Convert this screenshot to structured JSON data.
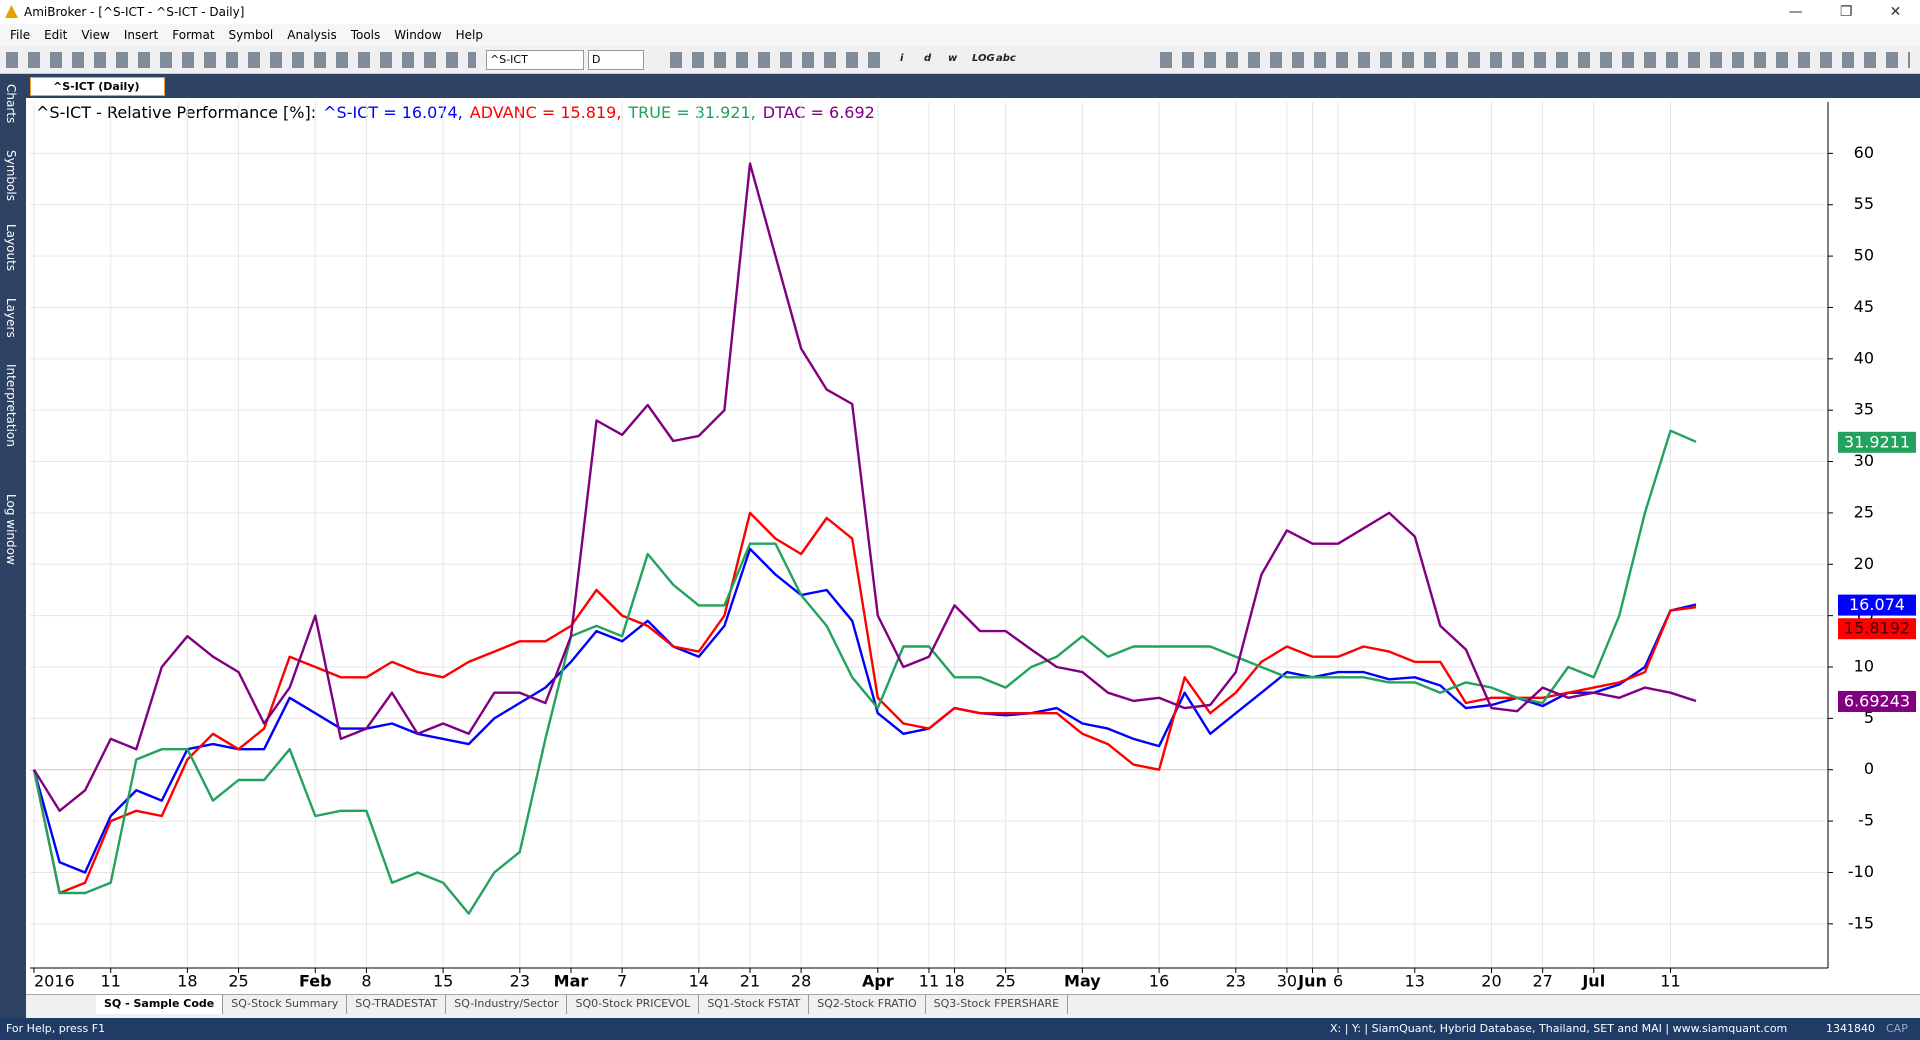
{
  "window": {
    "title": "AmiBroker - [^S-ICT - ^S-ICT - Daily]"
  },
  "menu": [
    "File",
    "Edit",
    "View",
    "Insert",
    "Format",
    "Symbol",
    "Analysis",
    "Tools",
    "Window",
    "Help"
  ],
  "toolbar": {
    "symbol": "^S-ICT",
    "interval": "D",
    "labels": [
      "i",
      "d",
      "w",
      "LOG",
      "abc"
    ]
  },
  "side_tabs": [
    "Charts",
    "Symbols",
    "Layouts",
    "Layers",
    "Interpretation",
    "Log window"
  ],
  "doc_tab": "^S-ICT (Daily)",
  "sheet_tabs": [
    "SQ - Sample Code",
    "SQ-Stock Summary",
    "SQ-TRADESTAT",
    "SQ-Industry/Sector",
    "SQ0-Stock PRICEVOL",
    "SQ1-Stock FSTAT",
    "SQ2-Stock FRATIO",
    "SQ3-Stock FPERSHARE"
  ],
  "status": {
    "help": "For Help, press F1",
    "info": "X: | Y: | SiamQuant, Hybrid Database, Thailand, SET and MAI | www.siamquant.com",
    "code": "1341840",
    "caps": "CAP"
  },
  "chart_data": {
    "type": "line",
    "title": "^S-ICT - Relative Performance [%]:",
    "categories": [
      "2016",
      null,
      null,
      "11",
      null,
      null,
      "18",
      null,
      "25",
      null,
      null,
      "Feb",
      null,
      "8",
      null,
      null,
      "15",
      null,
      null,
      "23",
      null,
      "Mar",
      null,
      "7",
      null,
      null,
      "14",
      null,
      "21",
      null,
      "28",
      null,
      null,
      "Apr",
      null,
      "11",
      "18",
      null,
      "25",
      null,
      null,
      "May",
      null,
      null,
      "16",
      null,
      null,
      "23",
      null,
      "30",
      "Jun",
      "6",
      null,
      null,
      "13",
      null,
      null,
      "20",
      null,
      "27",
      null,
      "Jul",
      null,
      null,
      "11",
      null
    ],
    "series": [
      {
        "name": "^S-ICT",
        "caption": "^S-ICT = 16.074,",
        "end_label": "16.074",
        "color": "#0000ff",
        "values": [
          0,
          -9,
          -10,
          -4.5,
          -2,
          -3,
          2,
          2.5,
          2,
          2,
          7,
          5.5,
          4,
          4,
          4.5,
          3.5,
          3,
          2.5,
          5,
          6.5,
          8,
          10.5,
          13.5,
          12.5,
          14.5,
          12,
          11,
          14,
          21.5,
          19,
          17,
          17.5,
          14.5,
          5.5,
          3.5,
          4,
          6,
          5.5,
          5.3,
          5.5,
          6,
          4.5,
          4,
          3,
          2.3,
          7.5,
          3.5,
          5.5,
          7.5,
          9.5,
          9,
          9.5,
          9.5,
          8.8,
          9,
          8.2,
          6,
          6.3,
          7,
          6.2,
          7.5,
          7.5,
          8.3,
          10,
          15.5,
          16.074
        ]
      },
      {
        "name": "ADVANC",
        "caption": "ADVANC = 15.819,",
        "end_label": "15.8192",
        "color": "#ff0000",
        "values": [
          0,
          -12,
          -11,
          -5,
          -4,
          -4.5,
          1,
          3.5,
          2,
          4,
          11,
          10,
          9,
          9,
          10.5,
          9.5,
          9,
          10.5,
          11.5,
          12.5,
          12.5,
          14,
          17.5,
          15,
          14,
          12,
          11.5,
          15,
          25,
          22.5,
          21,
          24.5,
          22.5,
          7,
          4.5,
          4,
          6,
          5.5,
          5.5,
          5.5,
          5.5,
          3.5,
          2.5,
          0.5,
          0,
          9,
          5.5,
          7.5,
          10.5,
          12,
          11,
          11,
          12,
          11.5,
          10.5,
          10.5,
          6.5,
          7,
          7,
          7,
          7.5,
          8,
          8.5,
          9.5,
          15.5,
          15.8192
        ]
      },
      {
        "name": "TRUE",
        "caption": "TRUE = 31.921,",
        "end_label": "31.9211",
        "color": "#22a25c",
        "values": [
          0,
          -12,
          -12,
          -11,
          1,
          2,
          2,
          -3,
          -1,
          -1,
          2,
          -4.5,
          -4,
          -4,
          -11,
          -10,
          -11,
          -14,
          -10,
          -8,
          3,
          13,
          14,
          13,
          21,
          18,
          16,
          16,
          22,
          22,
          17,
          14,
          9,
          6,
          12,
          12,
          9,
          9,
          8,
          10,
          11,
          13,
          11,
          12,
          12,
          12,
          12,
          11,
          10,
          9,
          9,
          9,
          9,
          8.5,
          8.5,
          7.5,
          8.5,
          8,
          7,
          6.5,
          10,
          9,
          15,
          25,
          33,
          31.9211
        ]
      },
      {
        "name": "DTAC",
        "caption": "DTAC = 6.692",
        "end_label": "6.69243",
        "color": "#800080",
        "values": [
          0,
          -4,
          -2,
          3,
          2,
          10,
          13,
          11,
          9.5,
          4.5,
          8,
          15,
          3,
          4,
          7.5,
          3.5,
          4.5,
          3.5,
          7.5,
          7.5,
          6.5,
          13,
          34,
          32.6,
          35.5,
          32,
          32.5,
          35,
          59,
          50,
          41,
          37,
          35.6,
          15,
          10,
          11,
          16,
          13.5,
          13.5,
          11.7,
          10,
          9.5,
          7.5,
          6.7,
          7,
          6,
          6.3,
          9.5,
          19,
          23.3,
          22,
          22,
          23.5,
          25,
          22.7,
          14,
          11.7,
          6,
          5.7,
          8,
          7,
          7.5,
          7,
          8,
          7.5,
          6.69243
        ]
      }
    ],
    "ylim": [
      -19.3,
      65
    ],
    "yticks": [
      -15,
      -10,
      -5,
      0,
      5,
      10,
      15,
      20,
      25,
      30,
      35,
      40,
      45,
      50,
      55,
      60
    ],
    "grid": true
  }
}
